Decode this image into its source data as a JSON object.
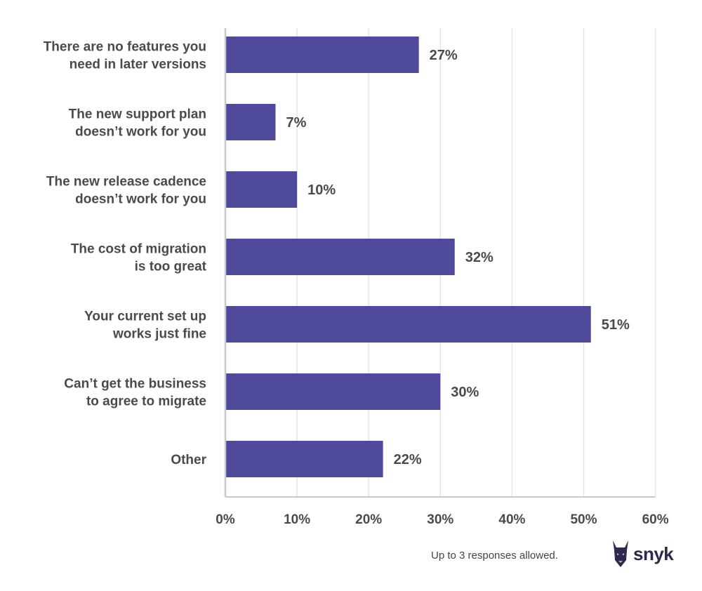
{
  "chart_data": {
    "type": "bar",
    "orientation": "horizontal",
    "categories": [
      [
        "There are no features you",
        "need in later versions"
      ],
      [
        "The new support plan",
        "doesn’t work for you"
      ],
      [
        "The new release cadence",
        "doesn’t work for you"
      ],
      [
        "The cost of migration",
        "is too great"
      ],
      [
        "Your current set up",
        "works just fine"
      ],
      [
        "Can’t get the business",
        "to agree to migrate"
      ],
      [
        "Other"
      ]
    ],
    "values": [
      27,
      7,
      10,
      32,
      51,
      30,
      22
    ],
    "value_labels": [
      "27%",
      "7%",
      "10%",
      "32%",
      "51%",
      "30%",
      "22%"
    ],
    "xlim": [
      0,
      60
    ],
    "xticks": [
      0,
      10,
      20,
      30,
      40,
      50,
      60
    ],
    "xtick_labels": [
      "0%",
      "10%",
      "20%",
      "30%",
      "40%",
      "50%",
      "60%"
    ],
    "grid": true,
    "bar_color": "#4f4a9c",
    "grid_color": "#e6e6e6",
    "axis_color": "#c8c8c8"
  },
  "footnote": "Up to 3 responses allowed.",
  "logo": {
    "text": "snyk",
    "icon": "doberman-icon",
    "color": "#2b2a4a"
  }
}
